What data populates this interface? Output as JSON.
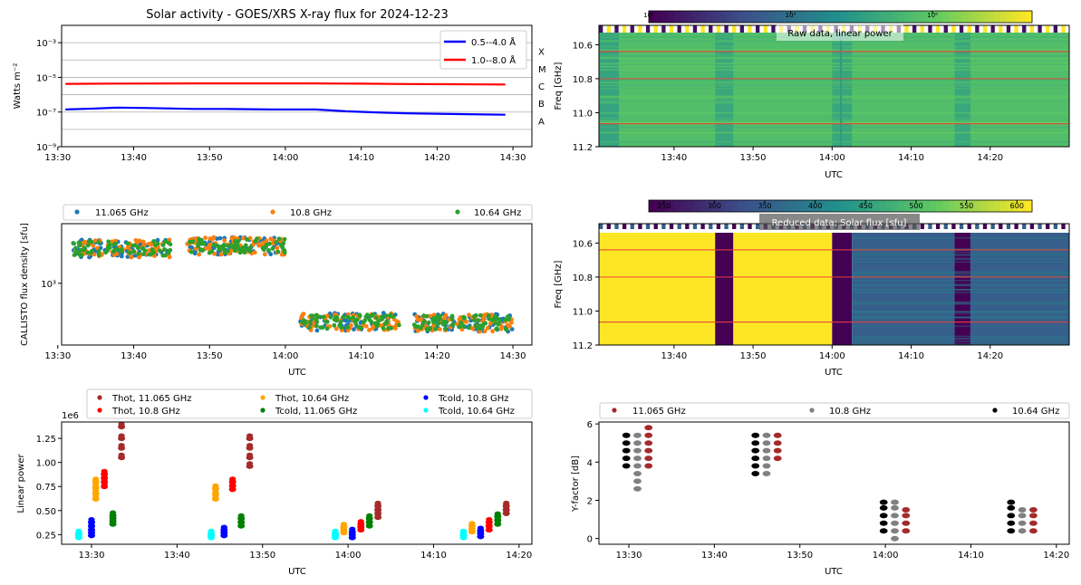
{
  "chart_data": [
    {
      "type": "line",
      "title": "Solar activity - GOES/XRS X-ray flux for 2024-12-23",
      "ylabel": "Watts m⁻²",
      "yscale": "log",
      "ylim": [
        1e-09,
        0.01
      ],
      "yticks": [
        "10⁻³",
        "10⁻⁵",
        "10⁻⁷",
        "10⁻⁹"
      ],
      "xticks": [
        "13:30",
        "13:40",
        "13:50",
        "14:00",
        "14:10",
        "14:20",
        "14:30"
      ],
      "xlim_minutes": [
        810.5,
        872.5
      ],
      "flare_classes": [
        "X",
        "M",
        "C",
        "B",
        "A"
      ],
      "grid": "horizontal",
      "legend_position": "top-right",
      "series": [
        {
          "name": "0.5--4.0 Å",
          "color": "#0000ff",
          "x": [
            "13:31",
            "13:35",
            "13:38",
            "13:42",
            "13:48",
            "13:52",
            "13:58",
            "14:04",
            "14:08",
            "14:12",
            "14:16",
            "14:20",
            "14:24",
            "14:29"
          ],
          "y": [
            1.4e-07,
            1.6e-07,
            1.8e-07,
            1.7e-07,
            1.5e-07,
            1.5e-07,
            1.4e-07,
            1.4e-07,
            1.1e-07,
            9.5e-08,
            8.5e-08,
            8e-08,
            7.5e-08,
            7e-08
          ]
        },
        {
          "name": "1.0--8.0 Å",
          "color": "#ff0000",
          "x": [
            "13:31",
            "13:38",
            "13:48",
            "13:58",
            "14:04",
            "14:10",
            "14:16",
            "14:22",
            "14:29"
          ],
          "y": [
            4.2e-06,
            4.4e-06,
            4.5e-06,
            4.5e-06,
            4.5e-06,
            4.3e-06,
            4.1e-06,
            4e-06,
            3.9e-06
          ]
        }
      ]
    },
    {
      "type": "heatmap",
      "title": "Raw data, linear power",
      "ylabel": "Freq [GHz]",
      "xlabel": "UTC",
      "yticks": [
        "10.6",
        "10.8",
        "11.0",
        "11.2"
      ],
      "xticks": [
        "13:40",
        "13:50",
        "14:00",
        "14:10",
        "14:20"
      ],
      "colorbar_ticks": [
        "10⁰",
        "10³",
        "10⁶"
      ],
      "colorbar_scale": "log",
      "colormap": "viridis",
      "marked_frequencies_ghz": [
        10.64,
        10.8,
        11.065
      ]
    },
    {
      "type": "scatter",
      "ylabel": "CALLISTO flux density [sfu]",
      "xlabel": "UTC",
      "yscale": "log",
      "yticks": [
        "10³"
      ],
      "xticks": [
        "13:30",
        "13:40",
        "13:50",
        "14:00",
        "14:10",
        "14:20",
        "14:30"
      ],
      "legend_position": "top",
      "series": [
        {
          "name": "11.065 GHz",
          "color": "#1f77b4"
        },
        {
          "name": "10.8 GHz",
          "color": "#ff7f0e"
        },
        {
          "name": "10.64 GHz",
          "color": "#2ca02c"
        }
      ],
      "segments": [
        {
          "start": "13:32",
          "end": "13:45",
          "value_sfu": 2000
        },
        {
          "start": "13:47",
          "end": "14:00",
          "value_sfu": 2100
        },
        {
          "start": "14:02",
          "end": "14:15",
          "value_sfu": 480
        },
        {
          "start": "14:17",
          "end": "14:30",
          "value_sfu": 470
        }
      ]
    },
    {
      "type": "heatmap",
      "title": "Reduced data; Solar flux [sfu]",
      "ylabel": "Freq [GHz]",
      "xlabel": "UTC",
      "yticks": [
        "10.6",
        "10.8",
        "11.0",
        "11.2"
      ],
      "xticks": [
        "13:40",
        "13:50",
        "14:00",
        "14:10",
        "14:20"
      ],
      "colorbar_ticks": [
        "250",
        "300",
        "350",
        "400",
        "450",
        "500",
        "550",
        "600"
      ],
      "colorbar_range": [
        235,
        615
      ],
      "colormap": "viridis",
      "marked_frequencies_ghz": [
        10.64,
        10.8,
        11.065
      ]
    },
    {
      "type": "scatter",
      "ylabel": "Linear power",
      "xlabel": "UTC",
      "offset_text": "1e6",
      "yticks": [
        "0.25",
        "0.50",
        "0.75",
        "1.00",
        "1.25"
      ],
      "ylim": [
        0.15,
        1.42
      ],
      "xticks": [
        "13:30",
        "13:40",
        "13:50",
        "14:00",
        "14:10",
        "14:20"
      ],
      "legend_position": "top",
      "series": [
        {
          "name": "Thot, 11.065 GHz",
          "color": "#a52a2a"
        },
        {
          "name": "Thot, 10.8 GHz",
          "color": "#ff0000"
        },
        {
          "name": "Thot, 10.64 GHz",
          "color": "#ffa500"
        },
        {
          "name": "Tcold, 11.065 GHz",
          "color": "#008000"
        },
        {
          "name": "Tcold, 10.8 GHz",
          "color": "#0000ff"
        },
        {
          "name": "Tcold, 10.64 GHz",
          "color": "#00ffff"
        }
      ],
      "clusters": [
        {
          "series": 5,
          "time": "13:28.5",
          "values": [
            0.22,
            0.24,
            0.26
          ]
        },
        {
          "series": 4,
          "time": "13:30",
          "values": [
            0.24,
            0.27,
            0.3,
            0.34,
            0.38
          ]
        },
        {
          "series": 2,
          "time": "13:30.5",
          "values": [
            0.62,
            0.68,
            0.74,
            0.8
          ]
        },
        {
          "series": 1,
          "time": "13:31.5",
          "values": [
            0.75,
            0.8,
            0.84,
            0.88
          ]
        },
        {
          "series": 3,
          "time": "13:32.5",
          "values": [
            0.36,
            0.39,
            0.42,
            0.45
          ]
        },
        {
          "series": 0,
          "time": "13:33.5",
          "values": [
            1.05,
            1.15,
            1.25,
            1.37
          ]
        },
        {
          "series": 5,
          "time": "13:44",
          "values": [
            0.22,
            0.24,
            0.26
          ]
        },
        {
          "series": 2,
          "time": "13:44.5",
          "values": [
            0.62,
            0.67,
            0.73
          ]
        },
        {
          "series": 4,
          "time": "13:45.5",
          "values": [
            0.24,
            0.27,
            0.3
          ]
        },
        {
          "series": 1,
          "time": "13:46.5",
          "values": [
            0.72,
            0.76,
            0.8
          ]
        },
        {
          "series": 3,
          "time": "13:47.5",
          "values": [
            0.34,
            0.38,
            0.42
          ]
        },
        {
          "series": 0,
          "time": "13:48.5",
          "values": [
            0.96,
            1.05,
            1.15,
            1.25
          ]
        },
        {
          "series": 5,
          "time": "13:58.5",
          "values": [
            0.22,
            0.24,
            0.26
          ]
        },
        {
          "series": 2,
          "time": "13:59.5",
          "values": [
            0.27,
            0.3,
            0.33
          ]
        },
        {
          "series": 4,
          "time": "14:00.5",
          "values": [
            0.22,
            0.25,
            0.28
          ]
        },
        {
          "series": 1,
          "time": "14:01.5",
          "values": [
            0.3,
            0.33,
            0.36
          ]
        },
        {
          "series": 3,
          "time": "14:02.5",
          "values": [
            0.34,
            0.38,
            0.42
          ]
        },
        {
          "series": 0,
          "time": "14:03.5",
          "values": [
            0.43,
            0.47,
            0.51,
            0.55
          ]
        },
        {
          "series": 5,
          "time": "14:13.5",
          "values": [
            0.22,
            0.24,
            0.26
          ]
        },
        {
          "series": 2,
          "time": "14:14.5",
          "values": [
            0.28,
            0.31,
            0.34
          ]
        },
        {
          "series": 4,
          "time": "14:15.5",
          "values": [
            0.23,
            0.26,
            0.29
          ]
        },
        {
          "series": 1,
          "time": "14:16.5",
          "values": [
            0.3,
            0.34,
            0.38
          ]
        },
        {
          "series": 3,
          "time": "14:17.5",
          "values": [
            0.36,
            0.4,
            0.44
          ]
        },
        {
          "series": 0,
          "time": "14:18.5",
          "values": [
            0.47,
            0.51,
            0.55
          ]
        }
      ]
    },
    {
      "type": "scatter",
      "ylabel": "Y-factor [dB]",
      "xlabel": "UTC",
      "yticks": [
        "0",
        "2",
        "4",
        "6"
      ],
      "ylim": [
        -0.3,
        6.1
      ],
      "xticks": [
        "13:30",
        "13:40",
        "13:50",
        "14:00",
        "14:10",
        "14:20"
      ],
      "legend_position": "top",
      "series": [
        {
          "name": "11.065 GHz",
          "color": "#a52a2a"
        },
        {
          "name": "10.8 GHz",
          "color": "#808080"
        },
        {
          "name": "10.64 GHz",
          "color": "#000000"
        }
      ],
      "clusters": [
        {
          "series": 2,
          "time": "13:29.7",
          "values": [
            3.8,
            4.2,
            4.6,
            5.0,
            5.4
          ]
        },
        {
          "series": 1,
          "time": "13:31",
          "values": [
            2.6,
            3.0,
            3.4,
            3.8,
            4.2,
            4.6,
            5.0,
            5.4
          ]
        },
        {
          "series": 0,
          "time": "13:32.3",
          "values": [
            3.8,
            4.2,
            4.6,
            5.0,
            5.4,
            5.8
          ]
        },
        {
          "series": 2,
          "time": "13:44.8",
          "values": [
            3.4,
            3.8,
            4.2,
            4.6,
            5.0,
            5.4
          ]
        },
        {
          "series": 1,
          "time": "13:46.1",
          "values": [
            3.4,
            3.8,
            4.2,
            4.6,
            5.0,
            5.4
          ]
        },
        {
          "series": 0,
          "time": "13:47.4",
          "values": [
            4.2,
            4.6,
            5.0,
            5.4
          ]
        },
        {
          "series": 2,
          "time": "13:59.8",
          "values": [
            0.4,
            0.8,
            1.2,
            1.6,
            1.9
          ]
        },
        {
          "series": 1,
          "time": "14:01.1",
          "values": [
            0.0,
            0.4,
            0.8,
            1.2,
            1.6,
            1.9
          ]
        },
        {
          "series": 0,
          "time": "14:02.4",
          "values": [
            0.4,
            0.8,
            1.2,
            1.5
          ]
        },
        {
          "series": 2,
          "time": "14:14.7",
          "values": [
            0.4,
            0.8,
            1.2,
            1.6,
            1.9
          ]
        },
        {
          "series": 1,
          "time": "14:16",
          "values": [
            0.4,
            0.8,
            1.2,
            1.5
          ]
        },
        {
          "series": 0,
          "time": "14:17.3",
          "values": [
            0.4,
            0.8,
            1.2,
            1.5
          ]
        }
      ]
    }
  ],
  "labels": {
    "utc": "UTC",
    "freq": "Freq [GHz]"
  }
}
